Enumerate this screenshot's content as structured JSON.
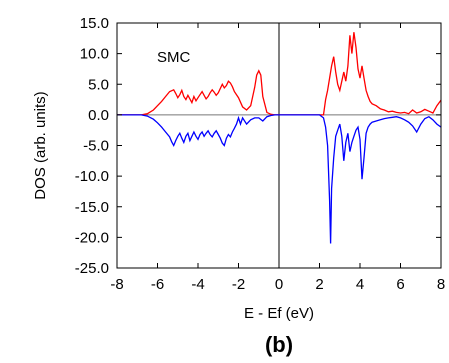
{
  "chart_data": {
    "type": "line",
    "title": "",
    "xlabel": "E - Ef (eV)",
    "ylabel": "DOS (arb. units)",
    "xlim": [
      -8,
      8
    ],
    "ylim": [
      -25,
      15
    ],
    "xticks": [
      -8,
      -6,
      -4,
      -2,
      0,
      2,
      4,
      6,
      8
    ],
    "xtick_labels": [
      "-8",
      "-6",
      "-4",
      "-2",
      "0",
      "2",
      "4",
      "6",
      "8"
    ],
    "yticks": [
      15,
      10,
      5,
      0,
      -5,
      -10,
      -15,
      -20,
      -25
    ],
    "ytick_labels": [
      "15.0",
      "10.0",
      "5.0",
      "0.0",
      "-5.0",
      "-10.0",
      "-15.0",
      "-20.0",
      "-25.0"
    ],
    "annotation": "SMC",
    "panel_label": "(b)",
    "grid": false,
    "reference_lines": {
      "vertical_at_x": 0,
      "horizontal_at_y": 0
    },
    "series": [
      {
        "color": "#ff0000",
        "x": [
          -8,
          -6.8,
          -6.5,
          -6.2,
          -6.0,
          -5.8,
          -5.6,
          -5.4,
          -5.2,
          -5.1,
          -5.0,
          -4.9,
          -4.8,
          -4.7,
          -4.6,
          -4.5,
          -4.4,
          -4.3,
          -4.2,
          -4.1,
          -4.0,
          -3.9,
          -3.8,
          -3.7,
          -3.6,
          -3.5,
          -3.4,
          -3.3,
          -3.2,
          -3.1,
          -3.0,
          -2.9,
          -2.8,
          -2.7,
          -2.6,
          -2.5,
          -2.4,
          -2.3,
          -2.2,
          -2.0,
          -1.8,
          -1.6,
          -1.4,
          -1.3,
          -1.2,
          -1.1,
          -1.0,
          -0.9,
          -0.8,
          -0.6,
          -0.4,
          -0.2,
          0,
          2.2,
          2.3,
          2.4,
          2.5,
          2.6,
          2.7,
          2.8,
          2.9,
          3.0,
          3.1,
          3.2,
          3.3,
          3.4,
          3.5,
          3.6,
          3.7,
          3.8,
          3.9,
          4.0,
          4.1,
          4.2,
          4.3,
          4.4,
          4.5,
          4.6,
          4.8,
          5.0,
          5.2,
          5.4,
          5.6,
          5.8,
          6.0,
          6.2,
          6.4,
          6.6,
          6.8,
          7.0,
          7.2,
          7.4,
          7.6,
          7.8,
          8.0
        ],
        "y": [
          0,
          0,
          0.2,
          0.8,
          1.5,
          2.2,
          3.0,
          3.8,
          4.1,
          3.5,
          2.8,
          3.3,
          4.0,
          3.0,
          2.5,
          3.2,
          2.6,
          2.0,
          3.0,
          2.3,
          2.8,
          3.3,
          3.8,
          3.2,
          2.6,
          3.0,
          3.6,
          4.1,
          3.7,
          3.2,
          3.6,
          4.3,
          5.0,
          4.4,
          4.8,
          5.5,
          5.2,
          4.6,
          3.8,
          2.8,
          1.3,
          0.8,
          1.5,
          3.0,
          4.5,
          6.5,
          7.2,
          6.5,
          3.0,
          0.4,
          0.1,
          0,
          0,
          0,
          2.5,
          4.0,
          6.0,
          8.0,
          9.5,
          7.0,
          5.0,
          4.0,
          5.5,
          7.0,
          5.5,
          8.0,
          13.0,
          10.0,
          13.5,
          11.0,
          7.5,
          6.0,
          8.0,
          6.0,
          4.0,
          3.0,
          2.2,
          1.8,
          1.5,
          1.0,
          0.8,
          0.5,
          0.6,
          0.4,
          0.3,
          0.4,
          0.2,
          0.8,
          0.3,
          0.5,
          0.9,
          0.6,
          0.3,
          1.5,
          2.4
        ]
      },
      {
        "color": "#0000ff",
        "x": [
          -8,
          -6.8,
          -6.5,
          -6.2,
          -6.0,
          -5.8,
          -5.6,
          -5.4,
          -5.3,
          -5.2,
          -5.1,
          -5.0,
          -4.9,
          -4.8,
          -4.7,
          -4.6,
          -4.5,
          -4.4,
          -4.3,
          -4.2,
          -4.1,
          -4.0,
          -3.9,
          -3.8,
          -3.7,
          -3.6,
          -3.5,
          -3.4,
          -3.3,
          -3.2,
          -3.1,
          -3.0,
          -2.9,
          -2.8,
          -2.7,
          -2.6,
          -2.5,
          -2.4,
          -2.3,
          -2.2,
          -2.1,
          -2.0,
          -1.9,
          -1.8,
          -1.6,
          -1.4,
          -1.2,
          -1.0,
          -0.8,
          -0.6,
          -0.4,
          -0.2,
          0,
          2.0,
          2.2,
          2.3,
          2.4,
          2.5,
          2.55,
          2.6,
          2.7,
          2.8,
          2.9,
          3.0,
          3.1,
          3.2,
          3.3,
          3.4,
          3.5,
          3.6,
          3.7,
          3.8,
          3.9,
          4.0,
          4.1,
          4.2,
          4.3,
          4.4,
          4.5,
          4.6,
          4.8,
          5.0,
          5.2,
          5.4,
          5.6,
          5.8,
          6.0,
          6.2,
          6.4,
          6.6,
          6.8,
          7.0,
          7.2,
          7.4,
          7.6,
          7.8,
          8.0
        ],
        "y": [
          0,
          0,
          -0.2,
          -0.7,
          -1.3,
          -2.0,
          -2.8,
          -3.6,
          -4.4,
          -5.0,
          -4.2,
          -3.5,
          -3.0,
          -3.8,
          -4.5,
          -3.5,
          -3.0,
          -4.2,
          -3.5,
          -2.8,
          -3.5,
          -4.0,
          -3.2,
          -2.8,
          -3.5,
          -3.0,
          -2.6,
          -3.2,
          -3.6,
          -3.0,
          -2.6,
          -3.2,
          -3.8,
          -4.6,
          -5.0,
          -3.8,
          -3.2,
          -3.6,
          -2.8,
          -2.2,
          -1.5,
          -0.5,
          -1.5,
          -0.5,
          -1.5,
          -0.8,
          -0.5,
          -0.5,
          -1.0,
          -0.3,
          -0.1,
          0,
          0,
          0,
          -0.5,
          -2.0,
          -5.0,
          -14.0,
          -21.0,
          -12.0,
          -7.0,
          -3.5,
          -2.5,
          -1.5,
          -3.5,
          -7.5,
          -4.5,
          -3.0,
          -6.0,
          -4.5,
          -3.5,
          -2.5,
          -2.0,
          -4.0,
          -10.5,
          -7.0,
          -3.0,
          -2.0,
          -1.5,
          -1.2,
          -1.0,
          -0.8,
          -0.6,
          -0.5,
          -0.4,
          -0.3,
          -0.5,
          -0.8,
          -1.2,
          -1.8,
          -2.8,
          -1.5,
          -0.6,
          -0.3,
          -0.8,
          -1.5,
          -2.0
        ]
      }
    ]
  }
}
